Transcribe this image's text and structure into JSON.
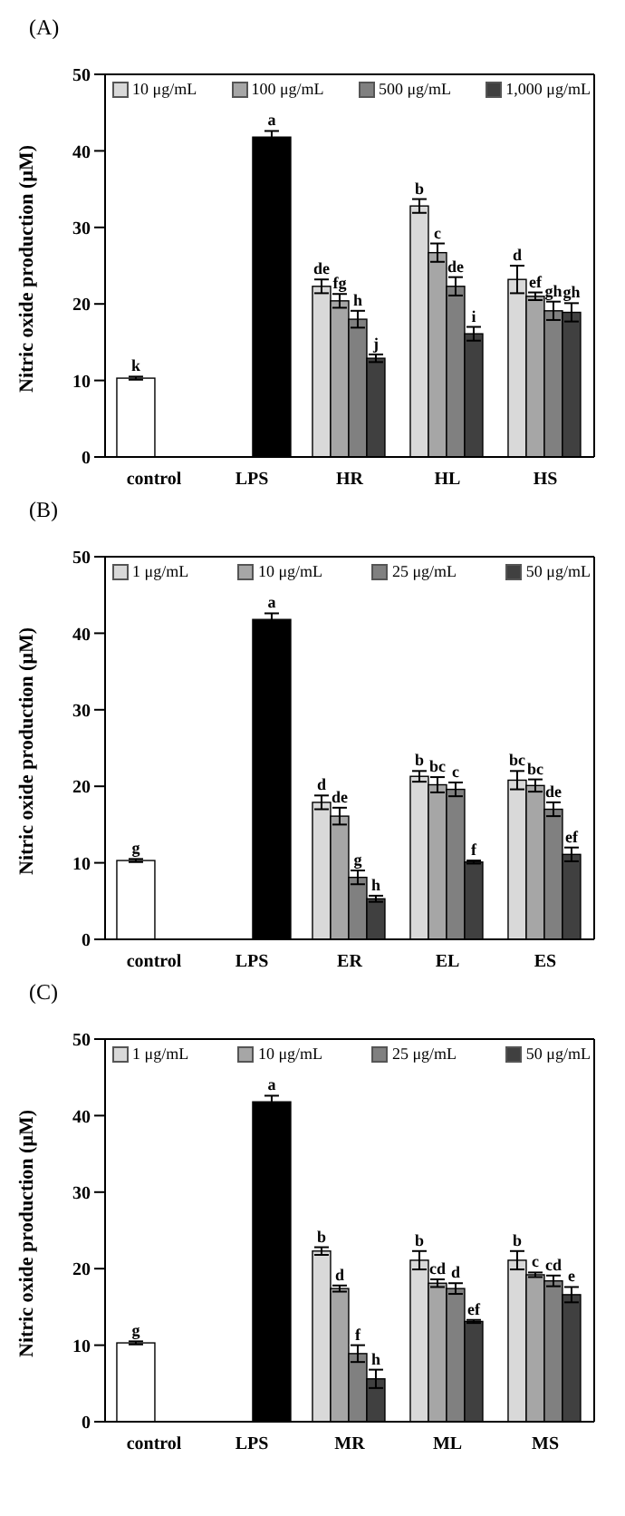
{
  "chart_data": [
    {
      "type": "bar",
      "title": "(A)",
      "ylabel": "Nitric oxide production (μM)",
      "categories": [
        "control",
        "LPS",
        "HR",
        "HL",
        "HS"
      ],
      "ylim": [
        0,
        50
      ],
      "yticks": [
        0,
        10,
        20,
        30,
        40,
        50
      ],
      "legend": "top",
      "series": [
        {
          "color": "#ffffff",
          "values": [
            10.3,
            null,
            null,
            null,
            null
          ],
          "errors": [
            0.2,
            null,
            null,
            null,
            null
          ],
          "value_labels": [
            "k",
            null,
            null,
            null,
            null
          ]
        },
        {
          "color": "#000000",
          "values": [
            null,
            41.8,
            null,
            null,
            null
          ],
          "errors": [
            null,
            0.8,
            null,
            null,
            null
          ],
          "value_labels": [
            null,
            "a",
            null,
            null,
            null
          ]
        },
        {
          "name": "10 μg/mL",
          "color": "#d9d9d9",
          "values": [
            null,
            null,
            22.3,
            32.8,
            23.2
          ],
          "errors": [
            null,
            null,
            0.9,
            0.9,
            1.8
          ],
          "value_labels": [
            null,
            null,
            "de",
            "b",
            "d"
          ]
        },
        {
          "name": "100 μg/mL",
          "color": "#a6a6a6",
          "values": [
            null,
            null,
            20.4,
            26.7,
            21.0
          ],
          "errors": [
            null,
            null,
            0.9,
            1.2,
            0.5
          ],
          "value_labels": [
            null,
            null,
            "fg",
            "c",
            "ef"
          ]
        },
        {
          "name": "500 μg/mL",
          "color": "#808080",
          "values": [
            null,
            null,
            18.0,
            22.3,
            19.1
          ],
          "errors": [
            null,
            null,
            1.1,
            1.2,
            1.2
          ],
          "value_labels": [
            null,
            null,
            "h",
            "de",
            "gh"
          ]
        },
        {
          "name": "1,000 μg/mL",
          "color": "#404040",
          "values": [
            null,
            null,
            12.9,
            16.1,
            18.9
          ],
          "errors": [
            null,
            null,
            0.5,
            0.9,
            1.2
          ],
          "value_labels": [
            null,
            null,
            "j",
            "i",
            "gh"
          ]
        }
      ]
    },
    {
      "type": "bar",
      "title": "(B)",
      "ylabel": "Nitric oxide production (μM)",
      "categories": [
        "control",
        "LPS",
        "ER",
        "EL",
        "ES"
      ],
      "ylim": [
        0,
        50
      ],
      "yticks": [
        0,
        10,
        20,
        30,
        40,
        50
      ],
      "legend": "top",
      "series": [
        {
          "color": "#ffffff",
          "values": [
            10.3,
            null,
            null,
            null,
            null
          ],
          "errors": [
            0.2,
            null,
            null,
            null,
            null
          ],
          "value_labels": [
            "g",
            null,
            null,
            null,
            null
          ]
        },
        {
          "color": "#000000",
          "values": [
            null,
            41.8,
            null,
            null,
            null
          ],
          "errors": [
            null,
            0.8,
            null,
            null,
            null
          ],
          "value_labels": [
            null,
            "a",
            null,
            null,
            null
          ]
        },
        {
          "name": "1 μg/mL",
          "color": "#d9d9d9",
          "values": [
            null,
            null,
            17.9,
            21.3,
            20.8
          ],
          "errors": [
            null,
            null,
            0.9,
            0.7,
            1.2
          ],
          "value_labels": [
            null,
            null,
            "d",
            "b",
            "bc"
          ]
        },
        {
          "name": "10 μg/mL",
          "color": "#a6a6a6",
          "values": [
            null,
            null,
            16.1,
            20.2,
            20.1
          ],
          "errors": [
            null,
            null,
            1.1,
            1.0,
            0.8
          ],
          "value_labels": [
            null,
            null,
            "de",
            "bc",
            "bc"
          ]
        },
        {
          "name": "25 μg/mL",
          "color": "#808080",
          "values": [
            null,
            null,
            8.1,
            19.6,
            17.0
          ],
          "errors": [
            null,
            null,
            0.9,
            0.9,
            0.9
          ],
          "value_labels": [
            null,
            null,
            "g",
            "c",
            "de"
          ]
        },
        {
          "name": "50 μg/mL",
          "color": "#404040",
          "values": [
            null,
            null,
            5.3,
            10.1,
            11.1
          ],
          "errors": [
            null,
            null,
            0.4,
            0.2,
            0.9
          ],
          "value_labels": [
            null,
            null,
            "h",
            "f",
            "ef"
          ]
        }
      ]
    },
    {
      "type": "bar",
      "title": "(C)",
      "ylabel": "Nitric oxide production (μM)",
      "categories": [
        "control",
        "LPS",
        "MR",
        "ML",
        "MS"
      ],
      "ylim": [
        0,
        50
      ],
      "yticks": [
        0,
        10,
        20,
        30,
        40,
        50
      ],
      "legend": "top",
      "series": [
        {
          "color": "#ffffff",
          "values": [
            10.3,
            null,
            null,
            null,
            null
          ],
          "errors": [
            0.2,
            null,
            null,
            null,
            null
          ],
          "value_labels": [
            "g",
            null,
            null,
            null,
            null
          ]
        },
        {
          "color": "#000000",
          "values": [
            null,
            41.8,
            null,
            null,
            null
          ],
          "errors": [
            null,
            0.8,
            null,
            null,
            null
          ],
          "value_labels": [
            null,
            "a",
            null,
            null,
            null
          ]
        },
        {
          "name": "1 μg/mL",
          "color": "#d9d9d9",
          "values": [
            null,
            null,
            22.3,
            21.1,
            21.1
          ],
          "errors": [
            null,
            null,
            0.5,
            1.2,
            1.2
          ],
          "value_labels": [
            null,
            null,
            "b",
            "b",
            "b"
          ]
        },
        {
          "name": "10 μg/mL",
          "color": "#a6a6a6",
          "values": [
            null,
            null,
            17.4,
            18.1,
            19.2
          ],
          "errors": [
            null,
            null,
            0.4,
            0.5,
            0.3
          ],
          "value_labels": [
            null,
            null,
            "d",
            "cd",
            "c"
          ]
        },
        {
          "name": "25 μg/mL",
          "color": "#808080",
          "values": [
            null,
            null,
            8.9,
            17.4,
            18.4
          ],
          "errors": [
            null,
            null,
            1.1,
            0.7,
            0.7
          ],
          "value_labels": [
            null,
            null,
            "f",
            "d",
            "cd"
          ]
        },
        {
          "name": "50 μg/mL",
          "color": "#404040",
          "values": [
            null,
            null,
            5.6,
            13.1,
            16.6
          ],
          "errors": [
            null,
            null,
            1.2,
            0.2,
            1.0
          ],
          "value_labels": [
            null,
            null,
            "h",
            "ef",
            "e"
          ]
        }
      ]
    }
  ]
}
